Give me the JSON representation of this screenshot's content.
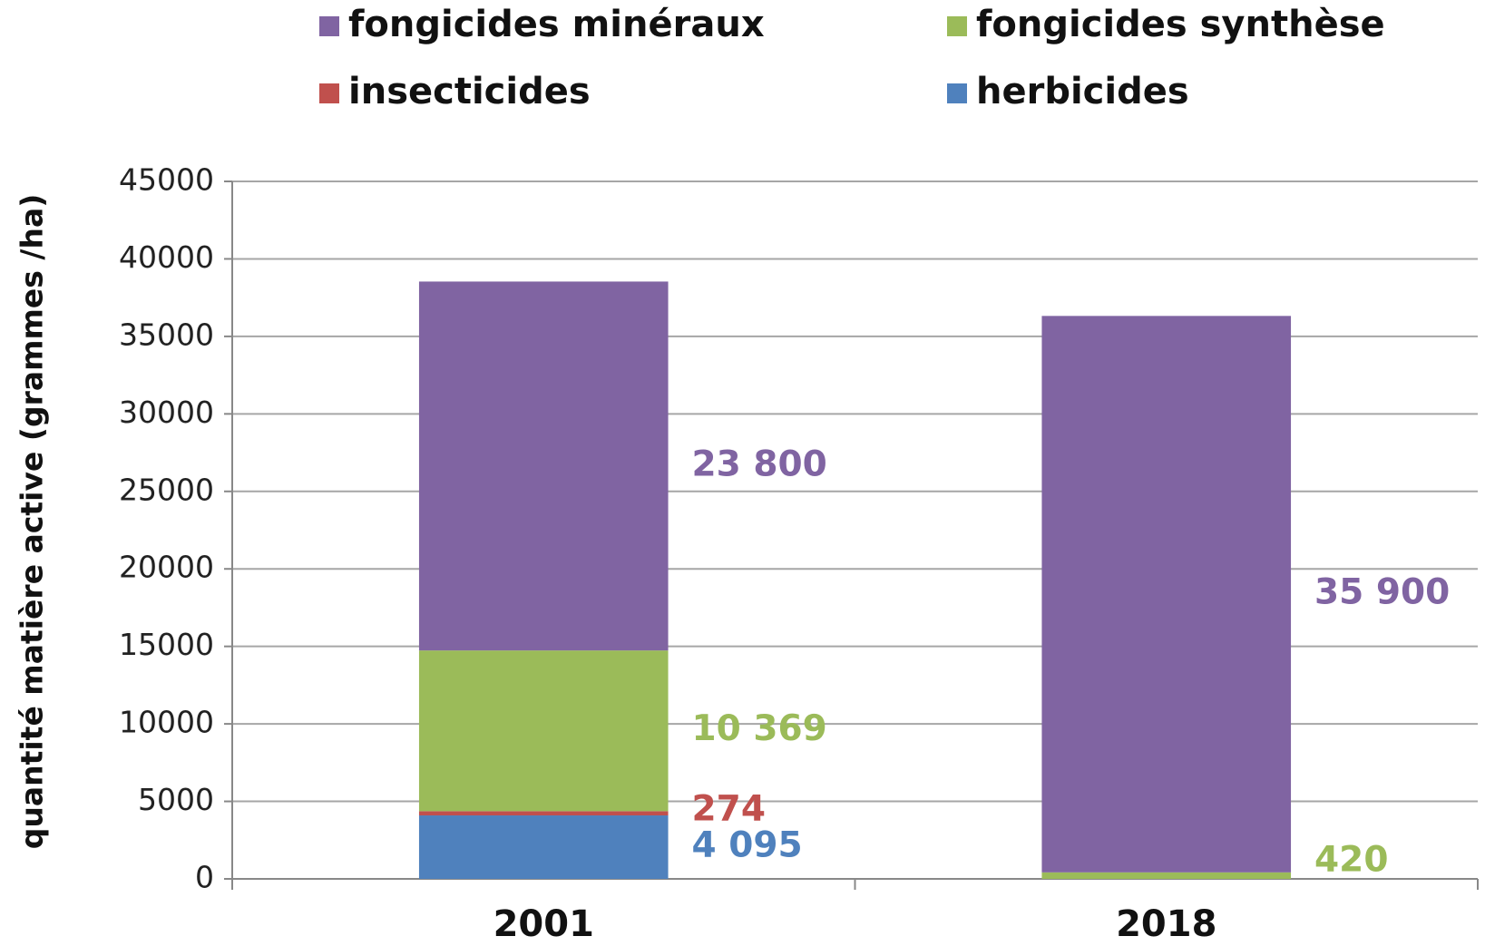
{
  "chart_data": {
    "type": "stacked_bar",
    "y_label": "quantité matière active (grammes  /ha)",
    "categories": [
      "2001",
      "2018"
    ],
    "series": [
      {
        "name": "fongicides minéraux",
        "color": "#8064a2",
        "values": [
          23800,
          35900
        ],
        "value_labels": [
          "23 800",
          "35 900"
        ]
      },
      {
        "name": "fongicides synthèse",
        "color": "#9bbb59",
        "values": [
          10369,
          420
        ],
        "value_labels": [
          "10 369",
          "420"
        ]
      },
      {
        "name": "insecticides",
        "color": "#c0504d",
        "values": [
          274,
          0
        ],
        "value_labels": [
          "274",
          null
        ]
      },
      {
        "name": "herbicides",
        "color": "#4f81bd",
        "values": [
          4095,
          0
        ],
        "value_labels": [
          "4 095",
          null
        ]
      }
    ],
    "ylim": [
      0,
      45000
    ],
    "yticks": [
      0,
      5000,
      10000,
      15000,
      20000,
      25000,
      30000,
      35000,
      40000,
      45000
    ],
    "grid": true
  }
}
